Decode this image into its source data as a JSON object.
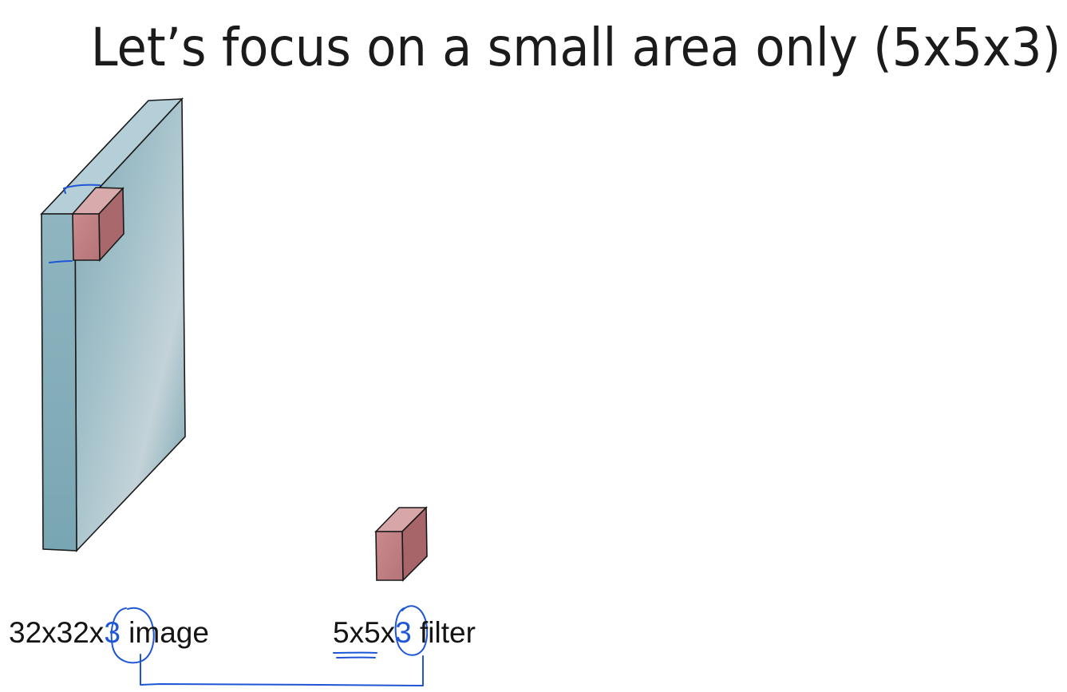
{
  "slide": {
    "title": "Let’s focus on a small area only (5x5x3)"
  },
  "captions": {
    "image": {
      "dims_prefix": "32x32x",
      "dims_highlight": "3",
      "suffix": " image"
    },
    "filter": {
      "dims_prefix": "5x5x",
      "dims_highlight": "3",
      "suffix": " filter"
    }
  },
  "colors": {
    "volume_front": "#84aeb9",
    "volume_side": "#a9c8d3",
    "volume_top": "#b9d2da",
    "cube_front": "#c17f83",
    "cube_side": "#a86569",
    "cube_top": "#d7a6a8",
    "ink": "#1f56d6",
    "outline": "#1a1a1a"
  },
  "icons": {
    "input_volume": "watercolor-blue-slab",
    "receptive_field": "red-cube",
    "filter": "red-cube"
  }
}
